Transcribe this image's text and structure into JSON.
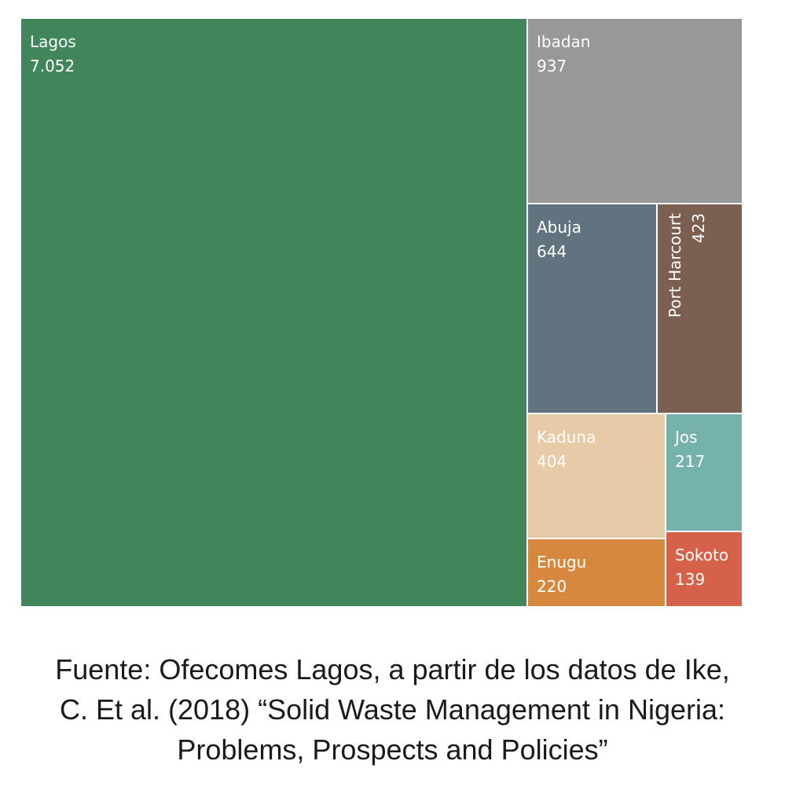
{
  "chart_data": {
    "type": "treemap",
    "items": [
      {
        "name": "Lagos",
        "value_label": "7.052",
        "value": 7052,
        "color": "#41865B"
      },
      {
        "name": "Ibadan",
        "value_label": "937",
        "value": 937,
        "color": "#989898"
      },
      {
        "name": "Abuja",
        "value_label": "644",
        "value": 644,
        "color": "#61737F"
      },
      {
        "name": "Port Harcourt",
        "value_label": "423",
        "value": 423,
        "color": "#7B5F51"
      },
      {
        "name": "Kaduna",
        "value_label": "404",
        "value": 404,
        "color": "#E7CBA6"
      },
      {
        "name": "Jos",
        "value_label": "217",
        "value": 217,
        "color": "#76B2AC"
      },
      {
        "name": "Enugu",
        "value_label": "220",
        "value": 220,
        "color": "#D6883E"
      },
      {
        "name": "Sokoto",
        "value_label": "139",
        "value": 139,
        "color": "#D56248"
      }
    ]
  },
  "caption": {
    "lines": [
      "Fuente: Ofecomes Lagos, a partir de los datos de Ike,",
      "C. Et al. (2018) “Solid Waste Management in Nigeria:",
      "Problems, Prospects and Policies”"
    ]
  }
}
